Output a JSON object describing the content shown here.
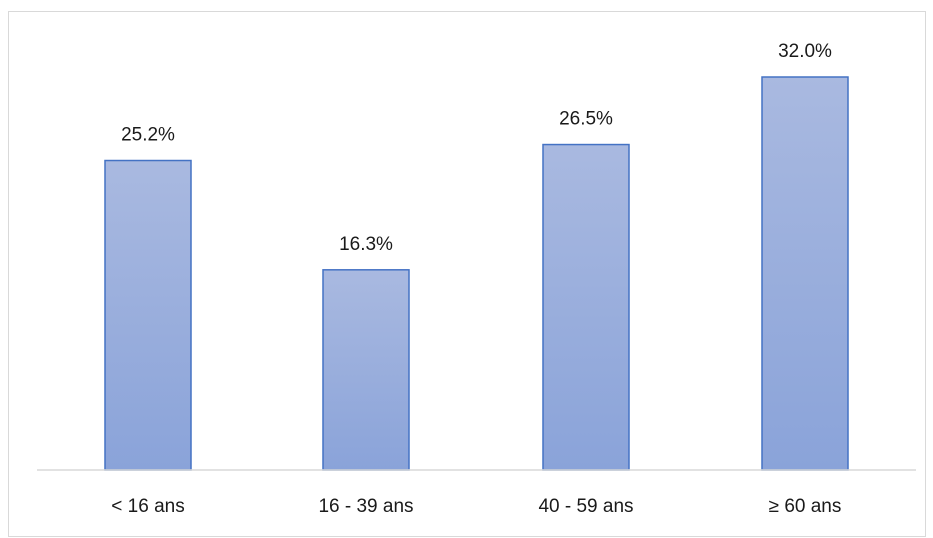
{
  "chart_data": {
    "type": "bar",
    "categories": [
      "< 16 ans",
      "16 - 39 ans",
      "40 - 59 ans",
      "≥ 60 ans"
    ],
    "values": [
      25.2,
      16.3,
      26.5,
      32.0
    ],
    "data_labels": [
      "25.2%",
      "16.3%",
      "26.5%",
      "32.0%"
    ],
    "title": "",
    "xlabel": "",
    "ylabel": "",
    "ylim": [
      0,
      32.0
    ],
    "grid": false,
    "legend": "none",
    "colors": {
      "bar_top": "#a9b9e0",
      "bar_bottom": "#8aa3d9",
      "bar_border": "#4472c4",
      "axis": "#d9d9d9",
      "frame": "#d9d9d9"
    }
  }
}
